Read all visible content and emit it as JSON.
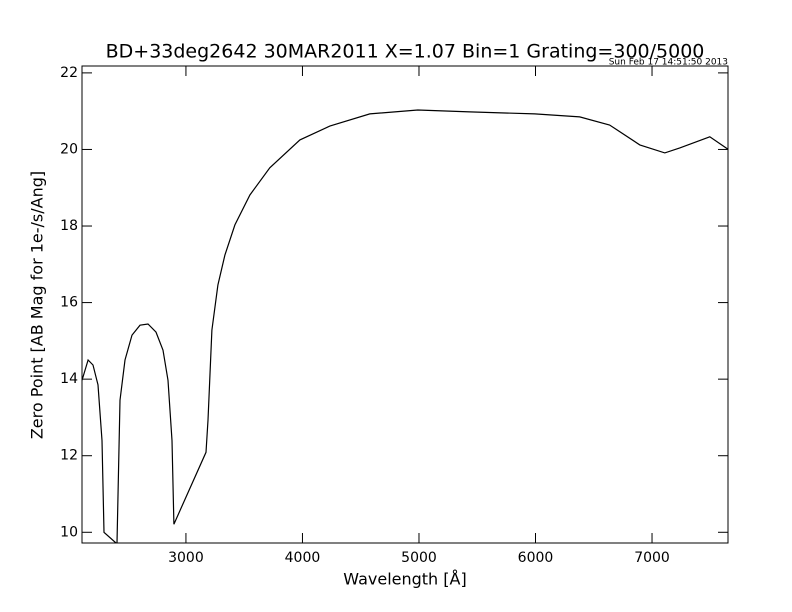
{
  "chart_data": {
    "type": "line",
    "title": "BD+33deg2642 30MAR2011 X=1.07 Bin=1 Grating=300/5000",
    "subtitle": "Sun Feb 17 14:51:50 2013",
    "x_label": "Wavelength [Å]",
    "y_label": "Zero Point [AB Mag for 1e-/s/Ang]",
    "x": [
      2108,
      2160,
      2202,
      2245,
      2280,
      2297,
      2400,
      2408,
      2434,
      2477,
      2537,
      2606,
      2674,
      2743,
      2803,
      2846,
      2880,
      2897,
      3172,
      3189,
      3223,
      3274,
      3334,
      3420,
      3549,
      3720,
      3978,
      4235,
      4578,
      4990,
      5436,
      5993,
      6379,
      6636,
      6895,
      7110,
      7238,
      7496,
      7650
    ],
    "values": [
      13.97,
      14.5,
      14.37,
      13.85,
      12.4,
      10.0,
      9.72,
      9.72,
      13.45,
      14.5,
      15.15,
      15.41,
      15.44,
      15.23,
      14.76,
      13.97,
      12.4,
      10.21,
      12.09,
      12.93,
      15.28,
      16.46,
      17.24,
      18.03,
      18.81,
      19.52,
      20.25,
      20.61,
      20.93,
      21.03,
      20.98,
      20.93,
      20.85,
      20.64,
      20.12,
      19.91,
      20.04,
      20.33,
      20.01
    ],
    "color": "#000000",
    "xlim": [
      2108,
      7652
    ],
    "ylim": [
      9.72,
      22.18
    ],
    "xticks": [
      3000,
      4000,
      5000,
      6000,
      7000
    ],
    "yticks": [
      10,
      12,
      14,
      16,
      18,
      20,
      22
    ]
  }
}
